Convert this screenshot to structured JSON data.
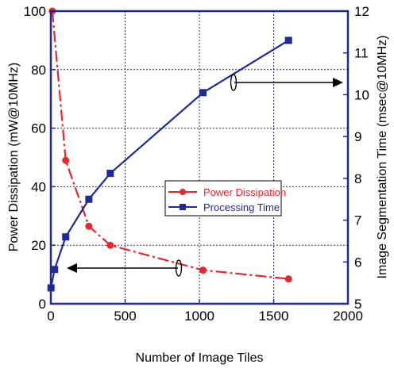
{
  "chart_data": {
    "type": "line",
    "x": [
      0,
      500,
      1000,
      1500,
      2000
    ],
    "xlabel": "Number of Image Tiles",
    "xlim": [
      0,
      2000
    ],
    "xticks": [
      0,
      500,
      1000,
      1500,
      2000
    ],
    "ylabel_left": "Power Dissipation (mW@10MHz)",
    "ylim_left": [
      0,
      100
    ],
    "yticks_left": [
      0,
      20,
      40,
      60,
      80,
      100
    ],
    "ylabel_right": "Image Segmentation Time (msec@10MHz)",
    "ylim_right": [
      5,
      12
    ],
    "yticks_right": [
      5,
      6,
      7,
      8,
      9,
      10,
      11,
      12
    ],
    "grid": true,
    "legend_position": "center-right",
    "series": [
      {
        "name": "Power Dissipation",
        "axis": "left",
        "color": "#e8262b",
        "marker": "circle",
        "line_style": "dash-dot",
        "x": [
          10,
          100,
          256,
          400,
          1024,
          1600
        ],
        "y": [
          100,
          49,
          26.5,
          20,
          11.5,
          8.5
        ]
      },
      {
        "name": "Processing Time",
        "axis": "right",
        "color": "#1f2a9a",
        "marker": "square",
        "line_style": "solid",
        "x": [
          1,
          25,
          100,
          256,
          400,
          1024,
          1600
        ],
        "y": [
          5.38,
          5.82,
          6.6,
          7.5,
          8.12,
          10.05,
          11.3
        ]
      }
    ],
    "annotations": [
      "left-arrow: Power Dissipation uses left axis",
      "right-arrow: Processing Time uses right axis"
    ]
  }
}
